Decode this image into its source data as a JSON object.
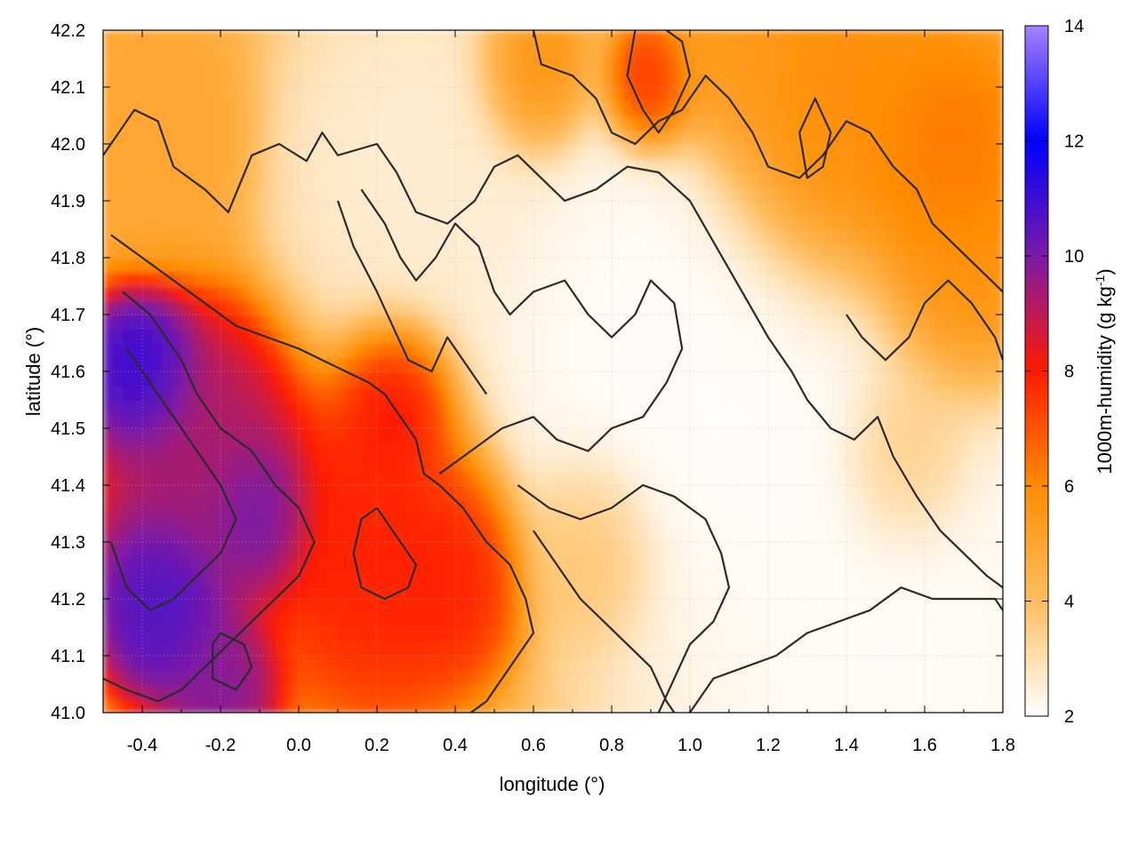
{
  "chart_data": {
    "type": "heatmap",
    "title": "",
    "xlabel": "longitude (°)",
    "ylabel": "latitude (°)",
    "colorbar_label": "1000m-humidity (g kg",
    "colorbar_label_sup": "-1",
    "colorbar_label_end": ")",
    "xlim": [
      -0.5,
      1.8
    ],
    "ylim": [
      41.0,
      42.2
    ],
    "clim": [
      2,
      14
    ],
    "x_ticks": [
      -0.4,
      -0.2,
      0.0,
      0.2,
      0.4,
      0.6,
      0.8,
      1.0,
      1.2,
      1.4,
      1.6,
      1.8
    ],
    "x_tick_labels": [
      "-0.4",
      "-0.2",
      "0.0",
      "0.2",
      "0.4",
      "0.6",
      "0.8",
      "1.0",
      "1.2",
      "1.4",
      "1.6",
      "1.8"
    ],
    "y_ticks": [
      41.0,
      41.1,
      41.2,
      41.3,
      41.4,
      41.5,
      41.6,
      41.7,
      41.8,
      41.9,
      42.0,
      42.1,
      42.2
    ],
    "y_tick_labels": [
      "41.0",
      "41.1",
      "41.2",
      "41.3",
      "41.4",
      "41.5",
      "41.6",
      "41.7",
      "41.8",
      "41.9",
      "42.0",
      "42.1",
      "42.2"
    ],
    "colorbar_ticks": [
      2,
      4,
      6,
      8,
      10,
      12,
      14
    ],
    "colorbar_tick_labels": [
      "2",
      "4",
      "6",
      "8",
      "10",
      "12",
      "14"
    ],
    "colormap": [
      {
        "value": 2,
        "color": "#ffffff"
      },
      {
        "value": 4,
        "color": "#ffbe60"
      },
      {
        "value": 6,
        "color": "#ff8c00"
      },
      {
        "value": 8,
        "color": "#ff1a00"
      },
      {
        "value": 10,
        "color": "#7a1aa8"
      },
      {
        "value": 12,
        "color": "#0000ff"
      },
      {
        "value": 14,
        "color": "#a582ff"
      }
    ],
    "grid": true,
    "field_blobs": [
      {
        "x": 1.5,
        "y": 41.1,
        "value": 2.0,
        "sigma": 0.45
      },
      {
        "x": 0.85,
        "y": 41.65,
        "value": 2.0,
        "sigma": 0.3
      },
      {
        "x": 1.15,
        "y": 41.55,
        "value": 2.0,
        "sigma": 0.25
      },
      {
        "x": 0.3,
        "y": 41.95,
        "value": 2.5,
        "sigma": 0.25
      },
      {
        "x": 0.9,
        "y": 42.1,
        "value": 8.0,
        "sigma": 0.08
      },
      {
        "x": 1.35,
        "y": 42.0,
        "value": 6.0,
        "sigma": 0.2
      },
      {
        "x": 1.65,
        "y": 41.95,
        "value": 6.5,
        "sigma": 0.15
      },
      {
        "x": 1.7,
        "y": 41.75,
        "value": 6.0,
        "sigma": 0.15
      },
      {
        "x": -0.35,
        "y": 42.0,
        "value": 5.0,
        "sigma": 0.15
      },
      {
        "x": 0.6,
        "y": 42.12,
        "value": 6.0,
        "sigma": 0.1
      },
      {
        "x": 1.1,
        "y": 42.15,
        "value": 5.5,
        "sigma": 0.12
      },
      {
        "x": 1.55,
        "y": 41.45,
        "value": 4.0,
        "sigma": 0.12
      },
      {
        "x": 0.75,
        "y": 41.3,
        "value": 4.0,
        "sigma": 0.12
      },
      {
        "x": -0.4,
        "y": 41.6,
        "value": 11.5,
        "sigma": 0.1
      },
      {
        "x": -0.35,
        "y": 41.2,
        "value": 11.0,
        "sigma": 0.12
      },
      {
        "x": -0.1,
        "y": 41.35,
        "value": 10.5,
        "sigma": 0.1
      },
      {
        "x": -0.25,
        "y": 41.45,
        "value": 9.5,
        "sigma": 0.18
      },
      {
        "x": 0.2,
        "y": 41.3,
        "value": 8.0,
        "sigma": 0.2
      },
      {
        "x": 0.25,
        "y": 41.55,
        "value": 8.5,
        "sigma": 0.1
      },
      {
        "x": 0.4,
        "y": 41.25,
        "value": 8.0,
        "sigma": 0.12
      },
      {
        "x": -0.2,
        "y": 41.05,
        "value": 10.0,
        "sigma": 0.1
      }
    ],
    "contours": [
      {
        "level": 4,
        "points": [
          [
            -0.5,
            41.98
          ],
          [
            -0.42,
            42.06
          ],
          [
            -0.36,
            42.04
          ],
          [
            -0.32,
            41.96
          ],
          [
            -0.24,
            41.92
          ],
          [
            -0.18,
            41.88
          ],
          [
            -0.12,
            41.98
          ],
          [
            -0.05,
            42.0
          ],
          [
            0.02,
            41.97
          ],
          [
            0.06,
            42.02
          ],
          [
            0.1,
            41.98
          ],
          [
            0.2,
            42.0
          ],
          [
            0.25,
            41.95
          ],
          [
            0.3,
            41.88
          ],
          [
            0.38,
            41.86
          ],
          [
            0.45,
            41.9
          ],
          [
            0.5,
            41.96
          ],
          [
            0.56,
            41.98
          ],
          [
            0.62,
            41.94
          ],
          [
            0.68,
            41.9
          ],
          [
            0.76,
            41.92
          ],
          [
            0.84,
            41.96
          ],
          [
            0.92,
            41.95
          ],
          [
            1.0,
            41.9
          ],
          [
            1.05,
            41.84
          ],
          [
            1.1,
            41.78
          ],
          [
            1.15,
            41.72
          ],
          [
            1.2,
            41.66
          ],
          [
            1.26,
            41.6
          ],
          [
            1.3,
            41.55
          ],
          [
            1.36,
            41.5
          ],
          [
            1.42,
            41.48
          ],
          [
            1.48,
            41.52
          ],
          [
            1.52,
            41.45
          ],
          [
            1.58,
            41.38
          ],
          [
            1.64,
            41.32
          ],
          [
            1.7,
            41.28
          ],
          [
            1.76,
            41.24
          ],
          [
            1.8,
            41.22
          ]
        ]
      },
      {
        "level": 3,
        "points": [
          [
            0.16,
            41.92
          ],
          [
            0.22,
            41.86
          ],
          [
            0.26,
            41.8
          ],
          [
            0.3,
            41.76
          ],
          [
            0.35,
            41.8
          ],
          [
            0.4,
            41.86
          ],
          [
            0.46,
            41.82
          ],
          [
            0.5,
            41.74
          ],
          [
            0.54,
            41.7
          ],
          [
            0.6,
            41.74
          ],
          [
            0.68,
            41.76
          ],
          [
            0.74,
            41.7
          ],
          [
            0.8,
            41.66
          ],
          [
            0.86,
            41.7
          ],
          [
            0.9,
            41.76
          ],
          [
            0.96,
            41.72
          ],
          [
            0.98,
            41.64
          ],
          [
            0.94,
            41.58
          ],
          [
            0.88,
            41.52
          ],
          [
            0.8,
            41.5
          ],
          [
            0.74,
            41.46
          ],
          [
            0.66,
            41.48
          ],
          [
            0.6,
            41.52
          ],
          [
            0.52,
            41.5
          ],
          [
            0.44,
            41.46
          ],
          [
            0.36,
            41.42
          ]
        ]
      },
      {
        "level": 2.5,
        "points": [
          [
            0.1,
            41.9
          ],
          [
            0.14,
            41.82
          ],
          [
            0.2,
            41.74
          ],
          [
            0.24,
            41.68
          ],
          [
            0.28,
            41.62
          ],
          [
            0.34,
            41.6
          ],
          [
            0.38,
            41.66
          ],
          [
            0.44,
            41.6
          ],
          [
            0.48,
            41.56
          ]
        ]
      },
      {
        "level": 6,
        "points": [
          [
            0.6,
            42.2
          ],
          [
            0.62,
            42.14
          ],
          [
            0.7,
            42.12
          ],
          [
            0.76,
            42.08
          ],
          [
            0.8,
            42.02
          ],
          [
            0.86,
            42.0
          ],
          [
            0.92,
            42.04
          ],
          [
            0.98,
            42.06
          ],
          [
            1.04,
            42.12
          ],
          [
            1.1,
            42.08
          ],
          [
            1.16,
            42.02
          ],
          [
            1.2,
            41.96
          ],
          [
            1.28,
            41.94
          ],
          [
            1.34,
            41.98
          ],
          [
            1.4,
            42.04
          ],
          [
            1.46,
            42.02
          ],
          [
            1.52,
            41.96
          ],
          [
            1.58,
            41.92
          ],
          [
            1.62,
            41.86
          ],
          [
            1.68,
            41.82
          ],
          [
            1.74,
            41.78
          ],
          [
            1.8,
            41.74
          ]
        ]
      },
      {
        "level": 7,
        "points": [
          [
            0.86,
            42.2
          ],
          [
            0.84,
            42.12
          ],
          [
            0.88,
            42.06
          ],
          [
            0.92,
            42.02
          ],
          [
            0.96,
            42.06
          ],
          [
            1.0,
            42.12
          ],
          [
            0.98,
            42.18
          ],
          [
            0.94,
            42.2
          ]
        ]
      },
      {
        "level": 6.5,
        "points": [
          [
            1.28,
            42.02
          ],
          [
            1.32,
            42.08
          ],
          [
            1.36,
            42.02
          ],
          [
            1.34,
            41.96
          ],
          [
            1.3,
            41.94
          ],
          [
            1.28,
            42.02
          ]
        ]
      },
      {
        "level": 8,
        "points": [
          [
            -0.48,
            41.84
          ],
          [
            -0.4,
            41.8
          ],
          [
            -0.32,
            41.76
          ],
          [
            -0.24,
            41.72
          ],
          [
            -0.16,
            41.68
          ],
          [
            -0.08,
            41.66
          ],
          [
            0.0,
            41.64
          ],
          [
            0.06,
            41.62
          ],
          [
            0.12,
            41.6
          ],
          [
            0.18,
            41.58
          ],
          [
            0.22,
            41.56
          ],
          [
            0.26,
            41.52
          ],
          [
            0.3,
            41.48
          ],
          [
            0.32,
            41.42
          ],
          [
            0.36,
            41.4
          ],
          [
            0.42,
            41.36
          ],
          [
            0.48,
            41.3
          ],
          [
            0.54,
            41.26
          ],
          [
            0.58,
            41.2
          ],
          [
            0.6,
            41.14
          ],
          [
            0.56,
            41.1
          ],
          [
            0.52,
            41.06
          ],
          [
            0.48,
            41.02
          ],
          [
            0.44,
            41.0
          ]
        ]
      },
      {
        "level": 9,
        "points": [
          [
            -0.45,
            41.74
          ],
          [
            -0.38,
            41.7
          ],
          [
            -0.3,
            41.62
          ],
          [
            -0.26,
            41.56
          ],
          [
            -0.2,
            41.5
          ],
          [
            -0.12,
            41.46
          ],
          [
            -0.06,
            41.4
          ],
          [
            0.0,
            41.36
          ],
          [
            0.04,
            41.3
          ],
          [
            0.0,
            41.24
          ],
          [
            -0.06,
            41.2
          ],
          [
            -0.12,
            41.16
          ],
          [
            -0.18,
            41.12
          ],
          [
            -0.24,
            41.08
          ],
          [
            -0.3,
            41.04
          ],
          [
            -0.36,
            41.02
          ],
          [
            -0.44,
            41.04
          ],
          [
            -0.5,
            41.06
          ]
        ]
      },
      {
        "level": 10,
        "points": [
          [
            -0.44,
            41.64
          ],
          [
            -0.38,
            41.58
          ],
          [
            -0.32,
            41.52
          ],
          [
            -0.26,
            41.46
          ],
          [
            -0.2,
            41.4
          ],
          [
            -0.16,
            41.34
          ],
          [
            -0.2,
            41.28
          ],
          [
            -0.26,
            41.24
          ],
          [
            -0.32,
            41.2
          ],
          [
            -0.38,
            41.18
          ],
          [
            -0.44,
            41.22
          ],
          [
            -0.48,
            41.3
          ]
        ]
      },
      {
        "level": 5,
        "points": [
          [
            0.56,
            41.4
          ],
          [
            0.64,
            41.36
          ],
          [
            0.72,
            41.34
          ],
          [
            0.8,
            41.36
          ],
          [
            0.88,
            41.4
          ],
          [
            0.96,
            41.38
          ],
          [
            1.04,
            41.34
          ],
          [
            1.08,
            41.28
          ],
          [
            1.1,
            41.22
          ],
          [
            1.06,
            41.16
          ],
          [
            1.0,
            41.12
          ],
          [
            0.96,
            41.06
          ],
          [
            0.92,
            41.0
          ]
        ]
      },
      {
        "level": 4.5,
        "points": [
          [
            0.6,
            41.32
          ],
          [
            0.66,
            41.26
          ],
          [
            0.72,
            41.2
          ],
          [
            0.78,
            41.16
          ],
          [
            0.84,
            41.12
          ],
          [
            0.9,
            41.08
          ],
          [
            0.94,
            41.02
          ],
          [
            0.96,
            41.0
          ]
        ]
      },
      {
        "level": 3.5,
        "points": [
          [
            1.0,
            41.0
          ],
          [
            1.06,
            41.06
          ],
          [
            1.14,
            41.08
          ],
          [
            1.22,
            41.1
          ],
          [
            1.3,
            41.14
          ],
          [
            1.38,
            41.16
          ],
          [
            1.46,
            41.18
          ],
          [
            1.54,
            41.22
          ],
          [
            1.62,
            41.2
          ],
          [
            1.7,
            41.2
          ],
          [
            1.78,
            41.2
          ],
          [
            1.8,
            41.18
          ]
        ]
      },
      {
        "level": 5.5,
        "points": [
          [
            1.4,
            41.7
          ],
          [
            1.44,
            41.66
          ],
          [
            1.5,
            41.62
          ],
          [
            1.56,
            41.66
          ],
          [
            1.6,
            41.72
          ],
          [
            1.66,
            41.76
          ],
          [
            1.72,
            41.72
          ],
          [
            1.78,
            41.66
          ],
          [
            1.8,
            41.62
          ]
        ]
      },
      {
        "level": 7.5,
        "points": [
          [
            0.2,
            41.36
          ],
          [
            0.26,
            41.3
          ],
          [
            0.3,
            41.26
          ],
          [
            0.28,
            41.22
          ],
          [
            0.22,
            41.2
          ],
          [
            0.16,
            41.22
          ],
          [
            0.14,
            41.28
          ],
          [
            0.16,
            41.34
          ],
          [
            0.2,
            41.36
          ]
        ]
      },
      {
        "level": 8.5,
        "points": [
          [
            -0.2,
            41.14
          ],
          [
            -0.14,
            41.12
          ],
          [
            -0.12,
            41.08
          ],
          [
            -0.16,
            41.04
          ],
          [
            -0.22,
            41.06
          ],
          [
            -0.22,
            41.12
          ],
          [
            -0.2,
            41.14
          ]
        ]
      }
    ]
  }
}
